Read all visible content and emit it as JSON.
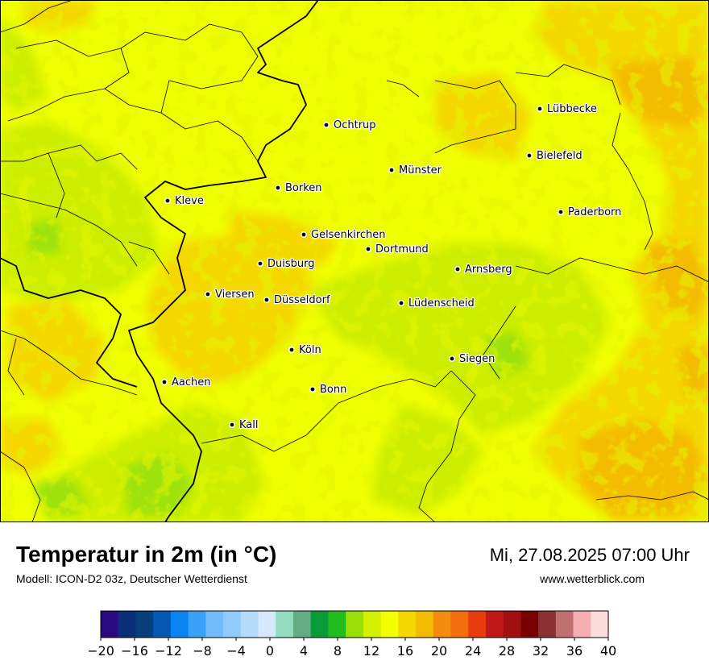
{
  "title": "Temperatur in 2m (in °C)",
  "subtitle": "Modell: ICON-D2 03z, Deutscher Wetterdienst",
  "datetime": "Mi, 27.08.2025 07:00 Uhr",
  "website": "www.wetterblick.com",
  "cities": [
    {
      "name": "Ochtrup"
    },
    {
      "name": "Lübbecke"
    },
    {
      "name": "Bielefeld"
    },
    {
      "name": "Münster"
    },
    {
      "name": "Borken"
    },
    {
      "name": "Kleve"
    },
    {
      "name": "Paderborn"
    },
    {
      "name": "Gelsenkirchen"
    },
    {
      "name": "Dortmund"
    },
    {
      "name": "Duisburg"
    },
    {
      "name": "Arnsberg"
    },
    {
      "name": "Viersen"
    },
    {
      "name": "Düsseldorf"
    },
    {
      "name": "Lüdenscheid"
    },
    {
      "name": "Köln"
    },
    {
      "name": "Siegen"
    },
    {
      "name": "Aachen"
    },
    {
      "name": "Bonn"
    },
    {
      "name": "Kall"
    }
  ],
  "legend": {
    "unit": "°C",
    "colors": [
      "#2a0a80",
      "#0a2e7a",
      "#073f7c",
      "#0458b4",
      "#0a84f0",
      "#3aa0f8",
      "#72bcfc",
      "#92cafc",
      "#b4dafc",
      "#d4eafc",
      "#94dcc0",
      "#64ac84",
      "#0a9c3a",
      "#22bc1c",
      "#9ade08",
      "#d4f000",
      "#f4ff00",
      "#f4d800",
      "#f4bc00",
      "#f48c10",
      "#f46e10",
      "#e83c10",
      "#c01818",
      "#a01010",
      "#7a0000",
      "#8a3030",
      "#c07070",
      "#f4b0b0",
      "#fcdcdc"
    ],
    "ticks": [
      "−20",
      "−16",
      "−12",
      "−8",
      "−4",
      "0",
      "4",
      "8",
      "12",
      "16",
      "20",
      "24",
      "28",
      "32",
      "36",
      "40"
    ],
    "min": -20,
    "max": 40
  }
}
